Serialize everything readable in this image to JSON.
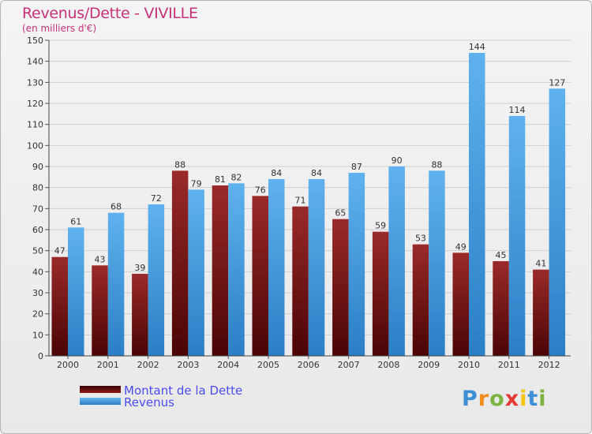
{
  "header": {
    "title": "Revenus/Dette - VIVILLE",
    "subtitle": "(en milliers d'€)"
  },
  "chart_data": {
    "type": "bar",
    "categories": [
      "2000",
      "2001",
      "2002",
      "2003",
      "2004",
      "2005",
      "2006",
      "2007",
      "2008",
      "2009",
      "2010",
      "2011",
      "2012"
    ],
    "series": [
      {
        "name": "Montant de la Dette",
        "values": [
          47,
          43,
          39,
          88,
          81,
          76,
          71,
          65,
          59,
          53,
          49,
          45,
          41
        ],
        "color": "#8b1a1a"
      },
      {
        "name": "Revenus",
        "values": [
          61,
          68,
          72,
          79,
          82,
          84,
          84,
          87,
          90,
          88,
          144,
          114,
          127
        ],
        "color": "#3d9be0"
      }
    ],
    "ylim": [
      0,
      150
    ],
    "yticks": [
      0,
      10,
      20,
      30,
      40,
      50,
      60,
      70,
      80,
      90,
      100,
      110,
      120,
      130,
      140,
      150
    ],
    "grid": true,
    "legend": "bottom-left"
  },
  "legend": {
    "items": [
      {
        "label": "Montant de la Dette",
        "color": "#6b0b0b"
      },
      {
        "label": "Revenus",
        "color": "#3d9be0"
      }
    ]
  },
  "logo": {
    "letters": [
      "P",
      "r",
      "o",
      "x",
      "i",
      "t",
      "i"
    ],
    "colors": [
      "#3d8fd6",
      "#f28c1e",
      "#7cb342",
      "#e53935",
      "#f2c511",
      "#3d8fd6",
      "#7cb342"
    ]
  }
}
